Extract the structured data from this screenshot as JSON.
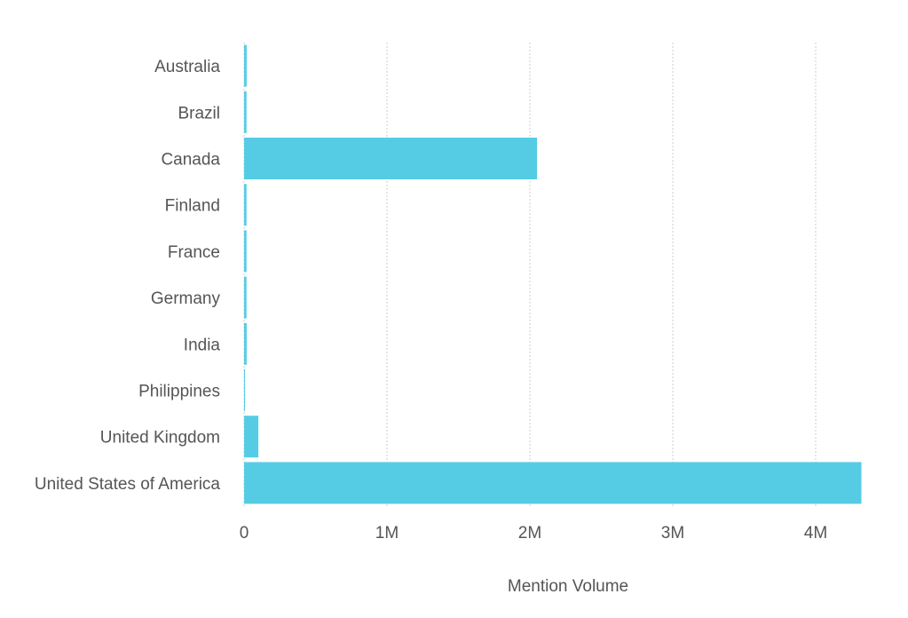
{
  "chart_data": {
    "type": "bar",
    "orientation": "horizontal",
    "categories": [
      "Australia",
      "Brazil",
      "Canada",
      "Finland",
      "France",
      "Germany",
      "India",
      "Philippines",
      "United Kingdom",
      "United States of America"
    ],
    "values": [
      18000,
      17000,
      2050000,
      17000,
      17000,
      17000,
      18000,
      5000,
      100000,
      4320000
    ],
    "xlabel": "Mention Volume",
    "ylabel": "",
    "title": "",
    "xlim": [
      0,
      4350000
    ],
    "x_ticks": [
      0,
      1000000,
      2000000,
      3000000,
      4000000
    ],
    "x_tick_labels": [
      "0",
      "1M",
      "2M",
      "3M",
      "4M"
    ],
    "grid": "vertical dotted",
    "bar_color": "#56cce4",
    "grid_color": "#cccccc"
  }
}
